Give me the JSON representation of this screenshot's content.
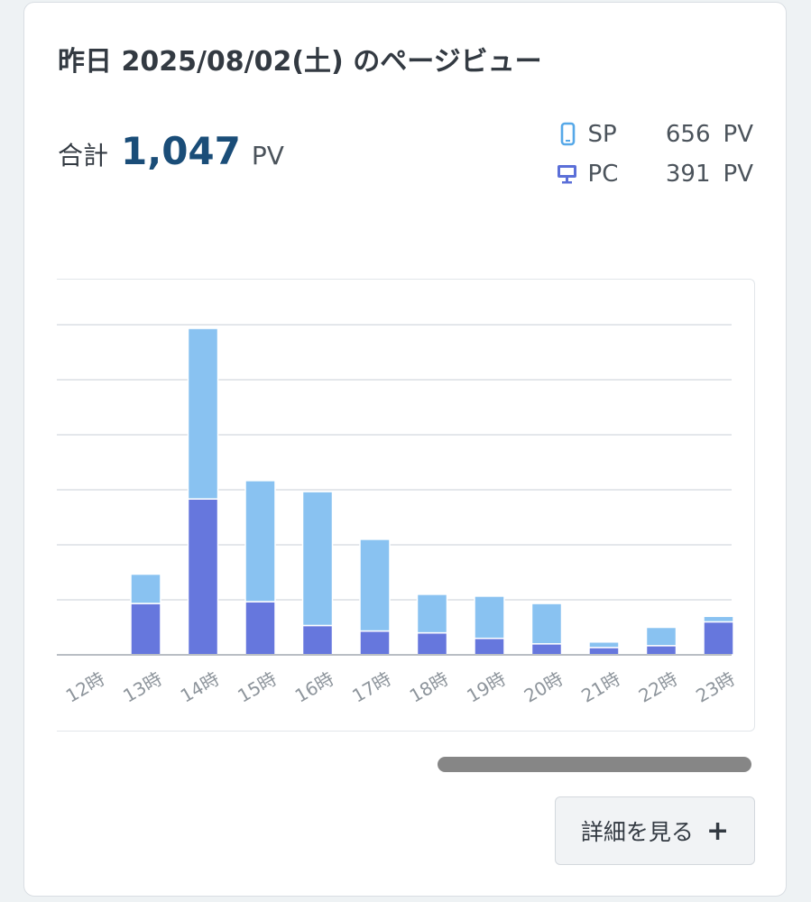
{
  "card": {
    "title": "昨日 2025/08/02(土) のページビュー",
    "total_label": "合計",
    "total_value": "1,047",
    "total_unit": "PV"
  },
  "legend": [
    {
      "name": "SP",
      "value": "656",
      "unit": "PV",
      "icon": "smartphone-icon",
      "color": "#56a8e8"
    },
    {
      "name": "PC",
      "value": "391",
      "unit": "PV",
      "icon": "monitor-icon",
      "color": "#5b6fd8"
    }
  ],
  "button": {
    "label": "詳細を見る",
    "icon": "plus-icon"
  },
  "chart_data": {
    "type": "bar",
    "stacked": true,
    "categories": [
      "12時",
      "13時",
      "14時",
      "15時",
      "16時",
      "17時",
      "18時",
      "19時",
      "20時",
      "21時",
      "22時",
      "23時"
    ],
    "series": [
      {
        "name": "PC",
        "color": "#6677dd",
        "values": [
          0,
          28,
          85,
          29,
          16,
          13,
          12,
          9,
          6,
          4,
          5,
          18
        ]
      },
      {
        "name": "SP",
        "color": "#89c2f1",
        "values": [
          0,
          16,
          93,
          66,
          73,
          50,
          21,
          23,
          22,
          3,
          10,
          3
        ]
      }
    ],
    "ylim": [
      0,
      180
    ],
    "grid": true
  }
}
